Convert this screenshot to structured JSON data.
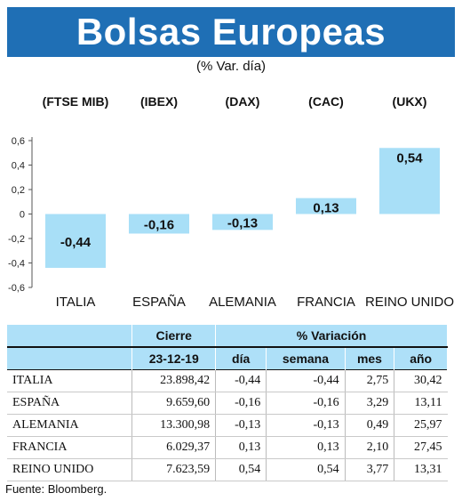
{
  "title": "Bolsas Europeas",
  "subtitle": "(% Var. día)",
  "source": "Fuente: Bloomberg.",
  "colors": {
    "banner": "#1f6fb5",
    "bar": "#a8dff7",
    "table_header": "#aee0f8"
  },
  "chart_data": {
    "type": "bar",
    "categories": [
      "ITALIA",
      "ESPAÑA",
      "ALEMANIA",
      "FRANCIA",
      "REINO UNIDO"
    ],
    "indices": [
      "(FTSE MIB)",
      "(IBEX)",
      "(DAX)",
      "(CAC)",
      "(UKX)"
    ],
    "values": [
      -0.44,
      -0.16,
      -0.13,
      0.13,
      0.54
    ],
    "value_labels": [
      "-0,44",
      "-0,16",
      "-0,13",
      "0,13",
      "0,54"
    ],
    "ylim": [
      -0.6,
      0.6
    ],
    "yticks": [
      0.6,
      0.4,
      0.2,
      0,
      -0.2,
      -0.4,
      -0.6
    ],
    "ytick_labels": [
      "0,6",
      "0,4",
      "0,2",
      "0",
      "-0,2",
      "-0,4",
      "-0,6"
    ],
    "grid": false
  },
  "table": {
    "header_cierre": "Cierre",
    "header_variacion": "% Variación",
    "header_date": "23-12-19",
    "subheaders": [
      "día",
      "semana",
      "mes",
      "año"
    ],
    "rows": [
      {
        "name": "ITALIA",
        "cierre": "23.898,42",
        "dia": "-0,44",
        "semana": "-0,44",
        "mes": "2,75",
        "ano": "30,42"
      },
      {
        "name": "ESPAÑA",
        "cierre": "9.659,60",
        "dia": "-0,16",
        "semana": "-0,16",
        "mes": "3,29",
        "ano": "13,11"
      },
      {
        "name": "ALEMANIA",
        "cierre": "13.300,98",
        "dia": "-0,13",
        "semana": "-0,13",
        "mes": "0,49",
        "ano": "25,97"
      },
      {
        "name": "FRANCIA",
        "cierre": "6.029,37",
        "dia": "0,13",
        "semana": "0,13",
        "mes": "2,10",
        "ano": "27,45"
      },
      {
        "name": "REINO UNIDO",
        "cierre": "7.623,59",
        "dia": "0,54",
        "semana": "0,54",
        "mes": "3,77",
        "ano": "13,31"
      }
    ]
  }
}
